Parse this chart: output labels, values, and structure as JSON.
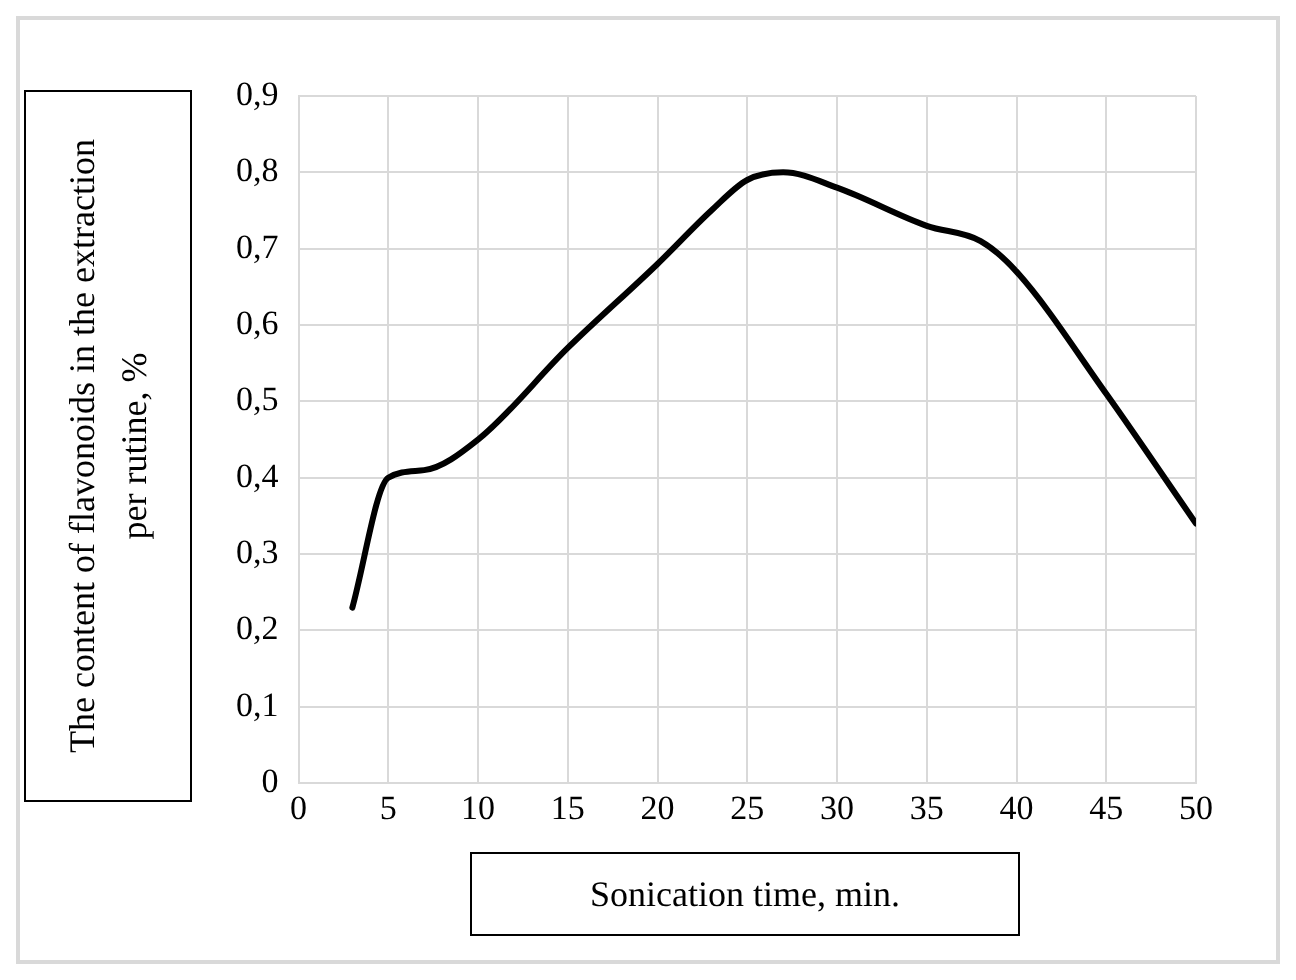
{
  "chart_data": {
    "type": "line",
    "xlabel": "Sonication time, min.",
    "ylabel": "The content of flavonoids in the extraction per rutine, %",
    "x": [
      3,
      5,
      7,
      10,
      15,
      20,
      23,
      25,
      27,
      30,
      35,
      38,
      40,
      45,
      50
    ],
    "series": [
      {
        "color": "#000000",
        "values": [
          0.23,
          0.4,
          0.41,
          0.45,
          0.57,
          0.68,
          0.75,
          0.79,
          0.8,
          0.78,
          0.73,
          0.71,
          0.67,
          0.51,
          0.34
        ]
      }
    ],
    "xlim": [
      0,
      50
    ],
    "xticks": [
      0,
      5,
      10,
      15,
      20,
      25,
      30,
      35,
      40,
      45,
      50
    ],
    "ylim": [
      0,
      0.9
    ],
    "yticks": [
      0,
      {
        "value": 0.1,
        "label": "0,1"
      },
      {
        "value": 0.2,
        "label": "0,2"
      },
      {
        "value": 0.3,
        "label": "0,3"
      },
      {
        "value": 0.4,
        "label": "0,4"
      },
      {
        "value": 0.5,
        "label": "0,5"
      },
      {
        "value": 0.6,
        "label": "0,6"
      },
      {
        "value": 0.7,
        "label": "0,7"
      },
      {
        "value": 0.8,
        "label": "0,8"
      },
      {
        "value": 0.9,
        "label": "0,9"
      }
    ],
    "grid": true,
    "legend": false,
    "marker": "none",
    "line_style": "solid"
  }
}
